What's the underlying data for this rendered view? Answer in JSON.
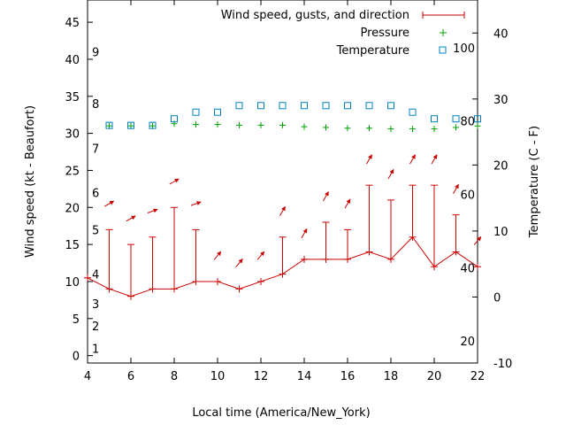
{
  "chart_data": {
    "type": "line",
    "xlabel": "Local time (America/New_York)",
    "ylabel_left": "Wind speed (kt - Beaufort)",
    "ylabel_right": "Temperature (C - F)",
    "xlim": [
      4,
      22
    ],
    "xticks": [
      4,
      6,
      8,
      10,
      12,
      14,
      16,
      18,
      20,
      22
    ],
    "ylim_left": [
      -1,
      48
    ],
    "yticks_left": [
      0,
      5,
      10,
      15,
      20,
      25,
      30,
      35,
      40,
      45
    ],
    "ylim_right": [
      -10,
      45
    ],
    "yticks_right": [
      -10,
      0,
      10,
      20,
      30,
      40
    ],
    "fahrenheit_ticks": [
      20,
      40,
      60,
      80,
      100
    ],
    "beaufort_ticks": [
      {
        "label": "1",
        "kt": 1
      },
      {
        "label": "2",
        "kt": 4
      },
      {
        "label": "3",
        "kt": 7
      },
      {
        "label": "4",
        "kt": 11
      },
      {
        "label": "5",
        "kt": 17
      },
      {
        "label": "6",
        "kt": 22
      },
      {
        "label": "7",
        "kt": 28
      },
      {
        "label": "8",
        "kt": 34
      },
      {
        "label": "9",
        "kt": 41
      }
    ],
    "legend": {
      "placement": "top-right",
      "wind": "Wind speed, gusts, and direction",
      "pressure": "Pressure",
      "temperature": "Temperature"
    },
    "colors": {
      "wind": "#cc0000",
      "pressure": "#00a000",
      "temperature": "#0080c0"
    },
    "series": [
      {
        "name": "Wind speed, gusts, and direction",
        "x": [
          4,
          5,
          6,
          7,
          8,
          9,
          10,
          11,
          12,
          13,
          14,
          15,
          16,
          17,
          18,
          19,
          20,
          21,
          22
        ],
        "speed": [
          10.5,
          9,
          8,
          9,
          9,
          10,
          10,
          9,
          10,
          11,
          13,
          13,
          13,
          14,
          13,
          16,
          12,
          14,
          12
        ],
        "gust": [
          null,
          17,
          15,
          16,
          20,
          17,
          null,
          null,
          null,
          16,
          null,
          18,
          17,
          23,
          21,
          23,
          23,
          19,
          12
        ],
        "direction_deg": [
          null,
          240,
          240,
          250,
          240,
          250,
          220,
          220,
          220,
          210,
          210,
          210,
          210,
          210,
          210,
          210,
          210,
          210,
          220
        ]
      },
      {
        "name": "Pressure",
        "x": [
          5,
          6,
          7,
          8,
          9,
          10,
          11,
          12,
          13,
          14,
          15,
          16,
          17,
          18,
          19,
          20,
          21,
          22
        ],
        "values_kt_axis": [
          31,
          31,
          31,
          31.3,
          31.2,
          31.2,
          31.1,
          31.1,
          31.1,
          30.9,
          30.8,
          30.7,
          30.7,
          30.6,
          30.6,
          30.6,
          30.8,
          31
        ]
      },
      {
        "name": "Temperature",
        "x": [
          5,
          6,
          7,
          8,
          9,
          10,
          11,
          12,
          13,
          14,
          15,
          16,
          17,
          18,
          19,
          20,
          21,
          22
        ],
        "values_c": [
          26,
          26,
          26,
          27,
          28,
          28,
          29,
          29,
          29,
          29,
          29,
          29,
          29,
          29,
          28,
          27,
          27,
          27
        ]
      }
    ]
  }
}
